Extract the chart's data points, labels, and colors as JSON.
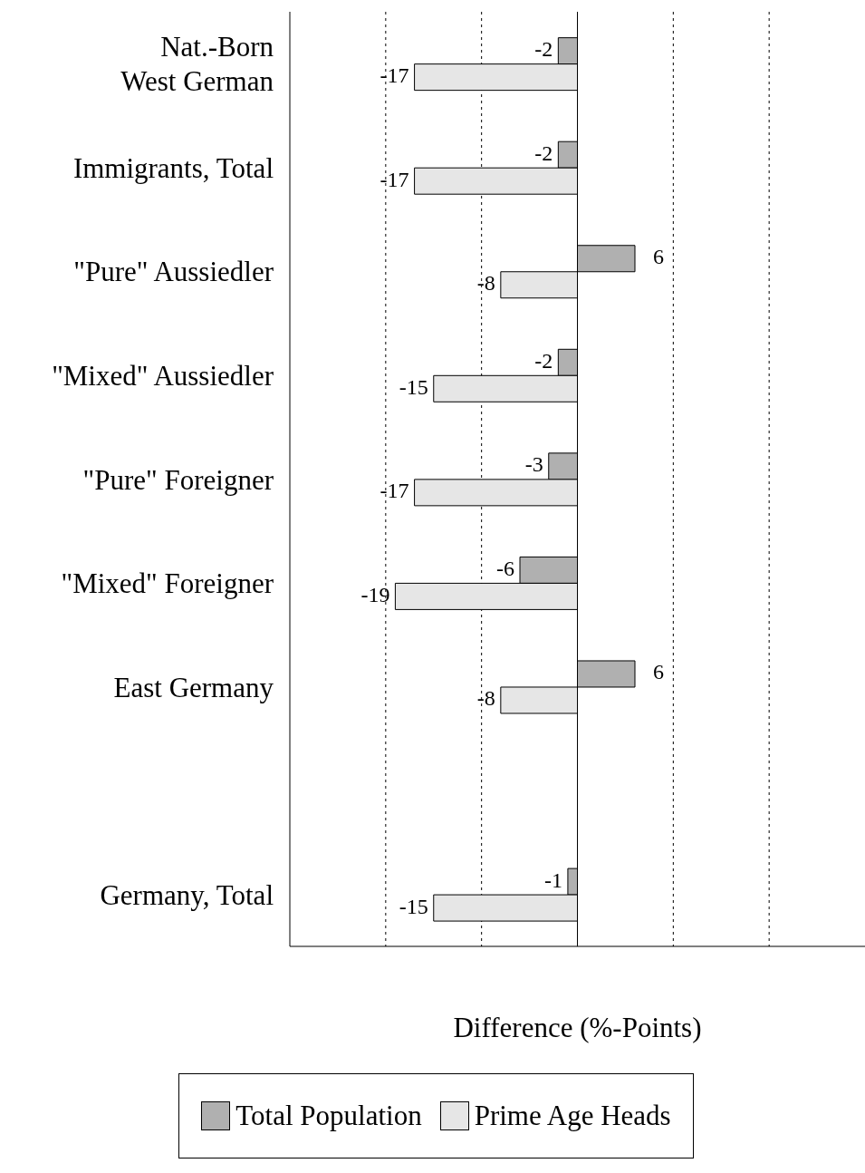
{
  "chart_data": {
    "type": "bar",
    "orientation": "horizontal",
    "xlabel": "Difference (%-Points)",
    "categories": [
      "Nat.-Born\nWest German",
      "Immigrants, Total",
      "\"Pure\" Aussiedler",
      "\"Mixed\" Aussiedler",
      "\"Pure\" Foreigner",
      "\"Mixed\" Foreigner",
      "East Germany",
      null,
      "Germany, Total"
    ],
    "series": [
      {
        "name": "Total Population",
        "color": "#b0b0b0",
        "values": [
          -2,
          -2,
          6,
          -2,
          -3,
          -6,
          6,
          null,
          -1
        ]
      },
      {
        "name": "Prime Age Heads",
        "color": "#e6e6e6",
        "values": [
          -17,
          -17,
          -8,
          -15,
          -17,
          -19,
          -8,
          null,
          -15
        ]
      }
    ],
    "xlim": [
      -30,
      30
    ],
    "xticks": [
      {
        "value": -20,
        "label": null
      },
      {
        "value": -10,
        "label": null
      },
      {
        "value": 10,
        "label": null
      },
      {
        "value": 20,
        "label": null
      }
    ],
    "ref_lines": [
      {
        "axis": "x",
        "value": 0,
        "line_style": "solid"
      }
    ],
    "tick_labels": "y",
    "grid": "x",
    "data_labels": true,
    "legend": "bottom"
  }
}
